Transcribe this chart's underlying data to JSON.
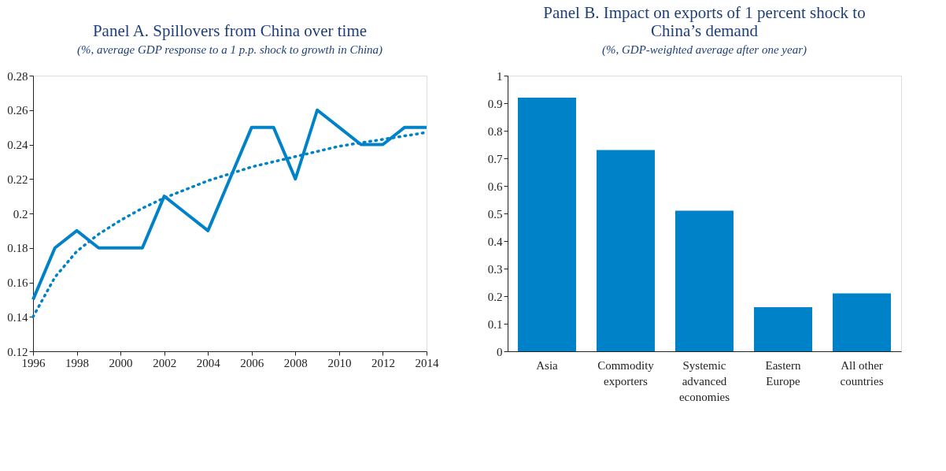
{
  "chart_data": [
    {
      "type": "line",
      "title": "Panel A. Spillovers from China over time",
      "subtitle": "(%, average GDP response to a 1 p.p. shock to growth in China)",
      "x": [
        1996,
        1997,
        1998,
        1999,
        2000,
        2001,
        2002,
        2003,
        2004,
        2005,
        2006,
        2007,
        2008,
        2009,
        2010,
        2011,
        2012,
        2013,
        2014
      ],
      "series": [
        {
          "color": "#0082c8",
          "line_style": "solid",
          "values": [
            0.15,
            0.18,
            0.19,
            0.18,
            0.18,
            0.18,
            0.21,
            0.2,
            0.19,
            0.22,
            0.25,
            0.25,
            0.22,
            0.26,
            0.25,
            0.24,
            0.24,
            0.25,
            0.25
          ]
        },
        {
          "color": "#0082c8",
          "line_style": "dotted",
          "values": [
            0.14,
            0.163,
            0.178,
            0.188,
            0.196,
            0.203,
            0.209,
            0.214,
            0.219,
            0.223,
            0.227,
            0.23,
            0.233,
            0.236,
            0.239,
            0.241,
            0.243,
            0.245,
            0.247
          ]
        }
      ],
      "xlim": [
        1996,
        2014
      ],
      "xticks": [
        1996,
        1998,
        2000,
        2002,
        2004,
        2006,
        2008,
        2010,
        2012,
        2014
      ],
      "ylim": [
        0.12,
        0.28
      ],
      "yticks": [
        0.12,
        0.14,
        0.16,
        0.18,
        0.2,
        0.22,
        0.24,
        0.26,
        0.28
      ],
      "grid": false,
      "marker": "none"
    },
    {
      "type": "bar",
      "title": "Panel B. Impact on exports of 1 percent shock to China’s demand",
      "subtitle": "(%, GDP-weighted average after one year)",
      "categories": [
        "Asia",
        "Commodity exporters",
        "Systemic advanced economies",
        "Eastern Europe",
        "All other countries"
      ],
      "values": [
        0.92,
        0.73,
        0.51,
        0.16,
        0.21
      ],
      "color": "#0082c8",
      "ylim": [
        0,
        1
      ],
      "yticks": [
        0,
        0.1,
        0.2,
        0.3,
        0.4,
        0.5,
        0.6,
        0.7,
        0.8,
        0.9,
        1
      ],
      "grid": false
    }
  ]
}
